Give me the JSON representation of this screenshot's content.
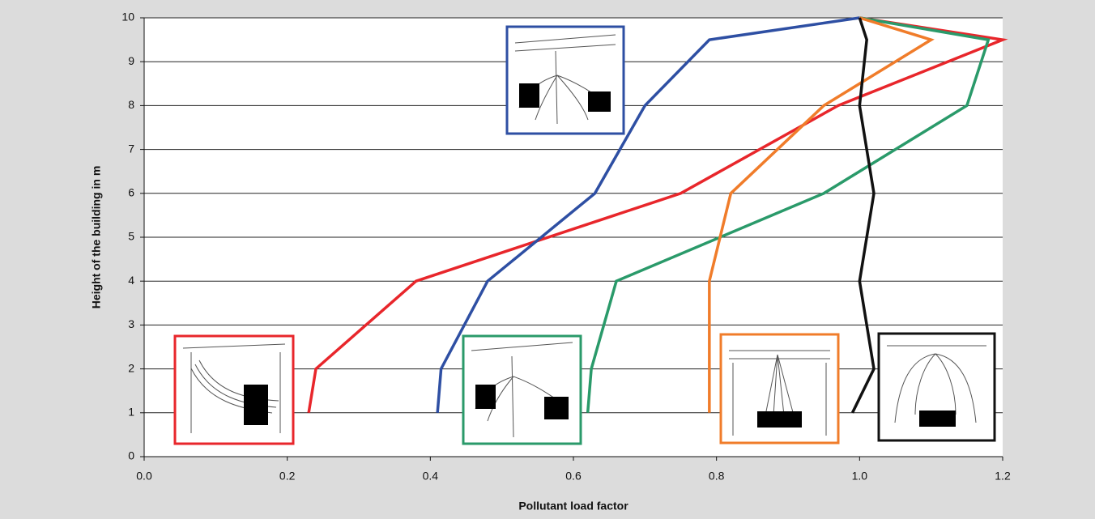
{
  "chart_data": {
    "type": "line",
    "x_label": "Pollutant load factor",
    "y_label": "Height of the building in m",
    "y": [
      1,
      2,
      4,
      6,
      8,
      9.5,
      10
    ],
    "series": [
      {
        "color": "#e8262b",
        "values": [
          0.23,
          0.24,
          0.38,
          0.75,
          0.97,
          1.2,
          1.0
        ]
      },
      {
        "color": "#2e4fa3",
        "values": [
          0.41,
          0.415,
          0.48,
          0.63,
          0.7,
          0.79,
          1.0
        ]
      },
      {
        "color": "#2a9a6a",
        "values": [
          0.62,
          0.625,
          0.66,
          0.95,
          1.15,
          1.18,
          1.0
        ]
      },
      {
        "color": "#f07c2a",
        "values": [
          0.79,
          0.79,
          0.79,
          0.82,
          0.95,
          1.1,
          1.0
        ]
      },
      {
        "color": "#111111",
        "values": [
          0.99,
          1.02,
          1.0,
          1.02,
          1.0,
          1.01,
          1.0
        ]
      }
    ],
    "xlim": [
      0,
      1.2
    ],
    "xticks": [
      {
        "value": 0,
        "label": "0.0"
      },
      {
        "value": 0.2,
        "label": "0.2"
      },
      {
        "value": 0.4,
        "label": "0.4"
      },
      {
        "value": 0.6,
        "label": "0.6"
      },
      {
        "value": 0.8,
        "label": "0.8"
      },
      {
        "value": 1,
        "label": "1.0"
      },
      {
        "value": 1.2,
        "label": "1.2"
      }
    ],
    "ylim": [
      0,
      10
    ],
    "yticks": [
      0,
      1,
      2,
      3,
      4,
      5,
      6,
      7,
      8,
      9,
      10
    ],
    "grid": true
  }
}
